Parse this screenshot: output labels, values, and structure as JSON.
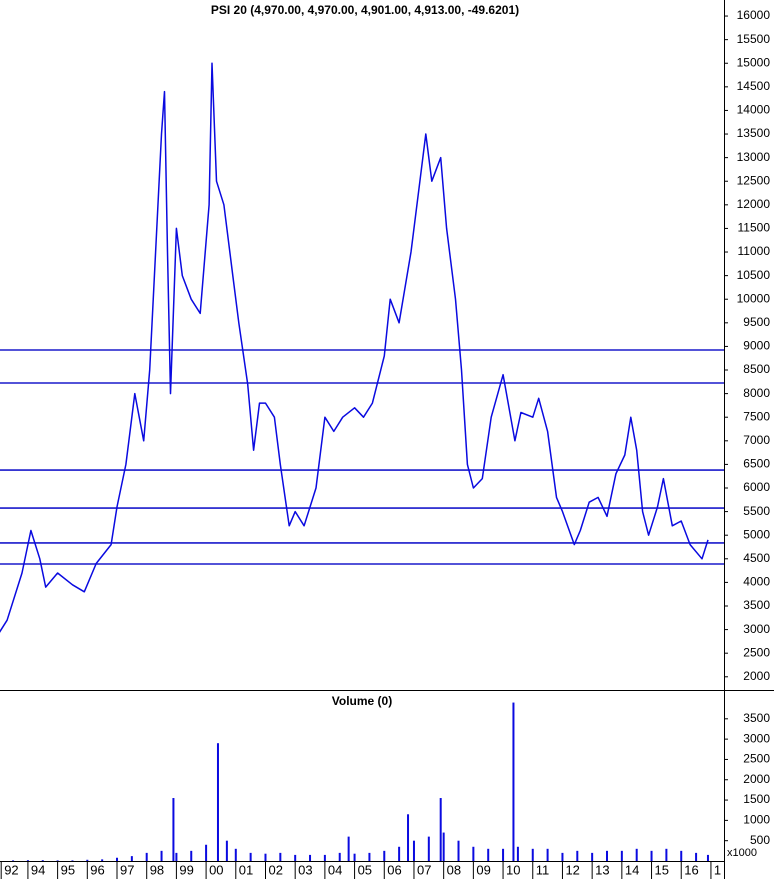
{
  "chart_data": {
    "type": "line",
    "title": "PSI 20 (4,970.00, 4,970.00, 4,901.00, 4,913.00, -49.6201)",
    "color": "#0a0ae0",
    "xlim": [
      1993.06,
      2017.44
    ],
    "xticks": [
      {
        "value": 1993.1,
        "label": "92"
      },
      {
        "value": 1994,
        "label": "94"
      },
      {
        "value": 1995,
        "label": "95"
      },
      {
        "value": 1996,
        "label": "96"
      },
      {
        "value": 1997,
        "label": "97"
      },
      {
        "value": 1998,
        "label": "98"
      },
      {
        "value": 1999,
        "label": "99"
      },
      {
        "value": 2000,
        "label": "00"
      },
      {
        "value": 2001,
        "label": "01"
      },
      {
        "value": 2002,
        "label": "02"
      },
      {
        "value": 2003,
        "label": "03"
      },
      {
        "value": 2004,
        "label": "04"
      },
      {
        "value": 2005,
        "label": "05"
      },
      {
        "value": 2006,
        "label": "06"
      },
      {
        "value": 2007,
        "label": "07"
      },
      {
        "value": 2008,
        "label": "08"
      },
      {
        "value": 2009,
        "label": "09"
      },
      {
        "value": 2010,
        "label": "10"
      },
      {
        "value": 2011,
        "label": "11"
      },
      {
        "value": 2012,
        "label": "12"
      },
      {
        "value": 2013,
        "label": "13"
      },
      {
        "value": 2014,
        "label": "14"
      },
      {
        "value": 2015,
        "label": "15"
      },
      {
        "value": 2016,
        "label": "16"
      },
      {
        "value": 2017,
        "label": "1"
      }
    ],
    "ylim": [
      1720,
      16340
    ],
    "yticks": [
      2000,
      2500,
      3000,
      3500,
      4000,
      4500,
      5000,
      5500,
      6000,
      6500,
      7000,
      7500,
      8000,
      8500,
      9000,
      9500,
      10000,
      10500,
      11000,
      11500,
      12000,
      12500,
      13000,
      13500,
      14000,
      14500,
      15000,
      15500,
      16000
    ],
    "hlines": [
      8924,
      8225,
      6381,
      5576,
      4835,
      4390
    ],
    "x": [
      1993.0,
      1993.3,
      1993.8,
      1994.1,
      1994.4,
      1994.6,
      1995.0,
      1995.5,
      1995.9,
      1996.3,
      1996.8,
      1997.0,
      1997.3,
      1997.6,
      1997.9,
      1998.1,
      1998.3,
      1998.5,
      1998.6,
      1998.7,
      1998.8,
      1999.0,
      1999.2,
      1999.5,
      1999.8,
      2000.1,
      2000.2,
      2000.35,
      2000.6,
      2000.9,
      2001.1,
      2001.4,
      2001.6,
      2001.8,
      2002.0,
      2002.3,
      2002.5,
      2002.8,
      2003.0,
      2003.3,
      2003.7,
      2004.0,
      2004.3,
      2004.6,
      2005.0,
      2005.3,
      2005.6,
      2006.0,
      2006.2,
      2006.5,
      2006.9,
      2007.2,
      2007.4,
      2007.6,
      2007.9,
      2008.1,
      2008.4,
      2008.6,
      2008.8,
      2009.0,
      2009.3,
      2009.6,
      2010.0,
      2010.2,
      2010.4,
      2010.6,
      2011.0,
      2011.2,
      2011.5,
      2011.8,
      2012.0,
      2012.4,
      2012.6,
      2012.9,
      2013.2,
      2013.5,
      2013.8,
      2014.1,
      2014.3,
      2014.5,
      2014.7,
      2014.9,
      2015.2,
      2015.4,
      2015.7,
      2016.0,
      2016.3,
      2016.7,
      2016.9
    ],
    "values": [
      2900,
      3200,
      4200,
      5100,
      4500,
      3900,
      4200,
      3950,
      3800,
      4400,
      4800,
      5600,
      6500,
      8000,
      7000,
      8500,
      11000,
      13500,
      14400,
      11000,
      8000,
      11500,
      10500,
      10000,
      9700,
      12000,
      15000,
      12500,
      12000,
      10500,
      9500,
      8200,
      6800,
      7800,
      7800,
      7500,
      6500,
      5200,
      5500,
      5200,
      6000,
      7500,
      7200,
      7500,
      7700,
      7500,
      7800,
      8800,
      10000,
      9500,
      11000,
      12500,
      13500,
      12500,
      13000,
      11500,
      10000,
      8500,
      6500,
      6000,
      6200,
      7500,
      8400,
      7700,
      7000,
      7600,
      7500,
      7900,
      7200,
      5800,
      5500,
      4800,
      5100,
      5700,
      5800,
      5400,
      6300,
      6700,
      7500,
      6800,
      5500,
      5000,
      5600,
      6200,
      5200,
      5300,
      4800,
      4500,
      4900
    ],
    "volume": {
      "title": "Volume (0)",
      "unit_label": "x1000",
      "ylim": [
        0,
        4160
      ],
      "yticks": [
        500,
        1000,
        1500,
        2000,
        2500,
        3000,
        3500
      ],
      "x": [
        1993.0,
        1993.5,
        1994.0,
        1994.5,
        1995.0,
        1995.5,
        1996.0,
        1996.5,
        1997.0,
        1997.5,
        1998.0,
        1998.5,
        1998.9,
        1999.0,
        1999.5,
        2000.0,
        2000.4,
        2000.7,
        2001.0,
        2001.5,
        2002.0,
        2002.5,
        2003.0,
        2003.5,
        2004.0,
        2004.5,
        2004.8,
        2005.0,
        2005.5,
        2006.0,
        2006.5,
        2006.8,
        2007.0,
        2007.5,
        2007.9,
        2008.0,
        2008.5,
        2009.0,
        2009.5,
        2010.0,
        2010.35,
        2010.5,
        2011.0,
        2011.5,
        2012.0,
        2012.5,
        2013.0,
        2013.5,
        2014.0,
        2014.5,
        2015.0,
        2015.5,
        2016.0,
        2016.5,
        2016.9
      ],
      "values": [
        10,
        15,
        20,
        20,
        15,
        15,
        30,
        40,
        80,
        120,
        200,
        250,
        1550,
        200,
        250,
        400,
        2900,
        500,
        300,
        200,
        180,
        200,
        150,
        150,
        150,
        200,
        600,
        180,
        200,
        250,
        350,
        1150,
        500,
        600,
        1550,
        700,
        500,
        350,
        300,
        300,
        3900,
        350,
        300,
        300,
        200,
        250,
        200,
        250,
        250,
        300,
        250,
        300,
        250,
        200,
        150
      ]
    }
  }
}
